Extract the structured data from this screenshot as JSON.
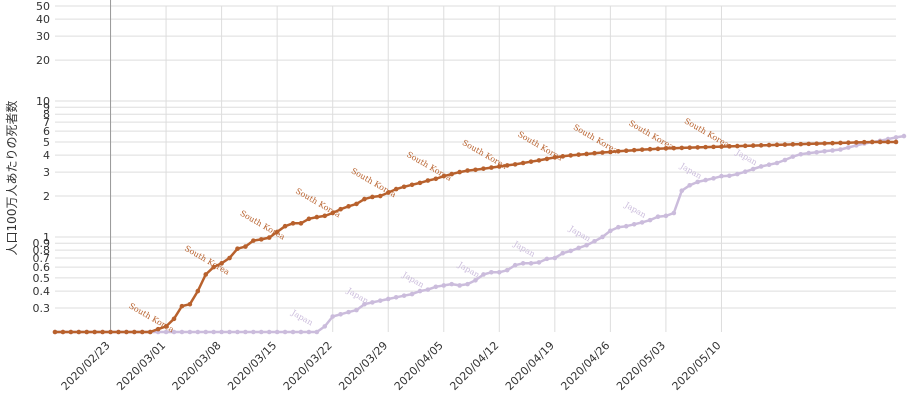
{
  "chart_data": {
    "type": "line",
    "ylabel": "人口100万人あたりの死者数",
    "xlabel": "",
    "yscale": "log",
    "ylim": [
      0.2,
      50
    ],
    "grid": true,
    "legend": "none",
    "x_ticks": [
      "2020/02/23",
      "2020/03/01",
      "2020/03/08",
      "2020/03/15",
      "2020/03/22",
      "2020/03/29",
      "2020/04/05",
      "2020/04/12",
      "2020/04/19",
      "2020/04/26",
      "2020/05/03",
      "2020/05/10"
    ],
    "y_ticks": [
      {
        "value": 0.3,
        "label": "0.3"
      },
      {
        "value": 0.4,
        "label": "0.4"
      },
      {
        "value": 0.5,
        "label": "0.5"
      },
      {
        "value": 0.6,
        "label": "0.6"
      },
      {
        "value": 0.7,
        "label": "0.7"
      },
      {
        "value": 0.8,
        "label": "0.8"
      },
      {
        "value": 0.9,
        "label": "0.9"
      },
      {
        "value": 1,
        "label": "1"
      },
      {
        "value": 2,
        "label": "2"
      },
      {
        "value": 3,
        "label": "3"
      },
      {
        "value": 4,
        "label": "4"
      },
      {
        "value": 5,
        "label": "5"
      },
      {
        "value": 6,
        "label": "6"
      },
      {
        "value": 7,
        "label": "7"
      },
      {
        "value": 8,
        "label": "8"
      },
      {
        "value": 9,
        "label": "9"
      },
      {
        "value": 10,
        "label": "10"
      },
      {
        "value": 20,
        "label": "20"
      },
      {
        "value": 30,
        "label": "30"
      },
      {
        "value": 40,
        "label": "40"
      },
      {
        "value": 50,
        "label": "50"
      }
    ],
    "x_start_date": "2020/02/16",
    "reference_line_date": "2020/02/23",
    "series": [
      {
        "name": "South Korea",
        "color": "#b8612d",
        "label_dates": [
          "2020/02/28",
          "2020/03/06",
          "2020/03/13",
          "2020/03/20",
          "2020/03/27",
          "2020/04/03",
          "2020/04/10",
          "2020/04/17",
          "2020/04/24",
          "2020/05/01",
          "2020/05/08"
        ],
        "values": [
          0.2,
          0.2,
          0.2,
          0.2,
          0.2,
          0.2,
          0.2,
          0.2,
          0.2,
          0.2,
          0.2,
          0.2,
          0.2,
          0.21,
          0.22,
          0.25,
          0.31,
          0.32,
          0.4,
          0.53,
          0.6,
          0.64,
          0.7,
          0.82,
          0.85,
          0.94,
          0.96,
          0.99,
          1.09,
          1.2,
          1.26,
          1.26,
          1.36,
          1.4,
          1.43,
          1.5,
          1.6,
          1.68,
          1.75,
          1.9,
          1.97,
          2.0,
          2.12,
          2.25,
          2.34,
          2.42,
          2.5,
          2.6,
          2.68,
          2.8,
          2.9,
          3.0,
          3.08,
          3.12,
          3.18,
          3.24,
          3.3,
          3.36,
          3.42,
          3.5,
          3.58,
          3.66,
          3.75,
          3.85,
          3.92,
          3.98,
          4.03,
          4.08,
          4.13,
          4.18,
          4.22,
          4.27,
          4.31,
          4.35,
          4.39,
          4.42,
          4.45,
          4.48,
          4.5,
          4.52,
          4.54,
          4.56,
          4.58,
          4.6,
          4.62,
          4.64,
          4.66,
          4.68,
          4.7,
          4.72,
          4.74,
          4.76,
          4.78,
          4.8,
          4.82,
          4.84,
          4.86,
          4.88,
          4.9,
          4.92,
          4.94,
          4.96,
          4.98,
          5.0,
          5.0,
          5.0,
          5.0
        ]
      },
      {
        "name": "Japan",
        "color": "#cbbcdc",
        "label_dates": [
          "2020/03/18",
          "2020/03/25",
          "2020/04/01",
          "2020/04/08",
          "2020/04/15",
          "2020/04/22",
          "2020/04/29",
          "2020/05/06",
          "2020/05/13"
        ],
        "values": [
          0.2,
          0.2,
          0.2,
          0.2,
          0.2,
          0.2,
          0.2,
          0.2,
          0.2,
          0.2,
          0.2,
          0.2,
          0.2,
          0.2,
          0.2,
          0.2,
          0.2,
          0.2,
          0.2,
          0.2,
          0.2,
          0.2,
          0.2,
          0.2,
          0.2,
          0.2,
          0.2,
          0.2,
          0.2,
          0.2,
          0.2,
          0.2,
          0.2,
          0.2,
          0.22,
          0.26,
          0.27,
          0.28,
          0.29,
          0.32,
          0.33,
          0.34,
          0.35,
          0.36,
          0.37,
          0.38,
          0.4,
          0.41,
          0.43,
          0.44,
          0.45,
          0.44,
          0.45,
          0.48,
          0.53,
          0.55,
          0.55,
          0.57,
          0.62,
          0.64,
          0.64,
          0.65,
          0.69,
          0.7,
          0.76,
          0.79,
          0.83,
          0.87,
          0.93,
          1.0,
          1.11,
          1.18,
          1.2,
          1.24,
          1.28,
          1.33,
          1.41,
          1.43,
          1.5,
          2.19,
          2.4,
          2.54,
          2.62,
          2.7,
          2.8,
          2.82,
          2.9,
          3.02,
          3.16,
          3.3,
          3.4,
          3.5,
          3.68,
          3.9,
          4.06,
          4.14,
          4.2,
          4.27,
          4.33,
          4.4,
          4.55,
          4.72,
          4.87,
          4.99,
          5.1,
          5.25,
          5.4,
          5.52
        ]
      }
    ]
  }
}
